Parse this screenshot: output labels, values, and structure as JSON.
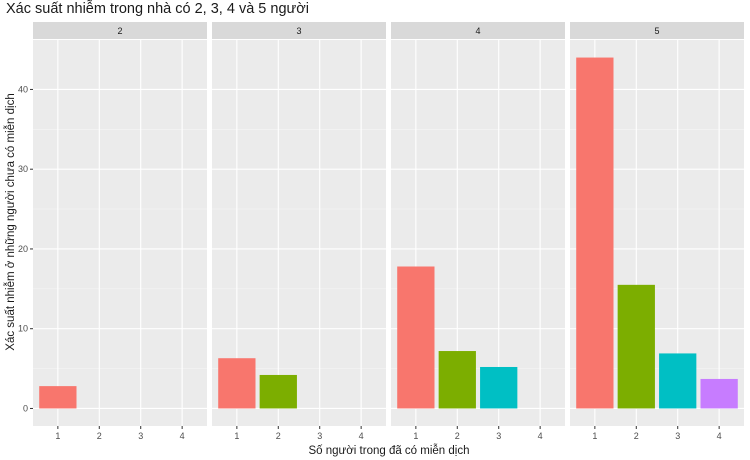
{
  "chart_data": {
    "type": "bar",
    "title": "Xác suất nhiễm trong nhà có 2, 3, 4 và 5 người",
    "xlabel": "Số người trong đã có miễn dịch",
    "ylabel": "Xác suất nhiễm ở những người chưa có miễn dịch",
    "categories": [
      "1",
      "2",
      "3",
      "4"
    ],
    "yticks": [
      0,
      10,
      20,
      30,
      40
    ],
    "ylim": [
      -2.2,
      46.2
    ],
    "grid": true,
    "legend": "none",
    "category_colors": [
      "#F8766D",
      "#7CAE00",
      "#00BFC4",
      "#C77CFF"
    ],
    "facets": [
      {
        "label": "2",
        "values": [
          2.8,
          null,
          null,
          null
        ]
      },
      {
        "label": "3",
        "values": [
          6.3,
          4.2,
          null,
          null
        ]
      },
      {
        "label": "4",
        "values": [
          17.8,
          7.2,
          5.2,
          null
        ]
      },
      {
        "label": "5",
        "values": [
          44.0,
          15.5,
          6.9,
          3.7
        ]
      }
    ]
  }
}
